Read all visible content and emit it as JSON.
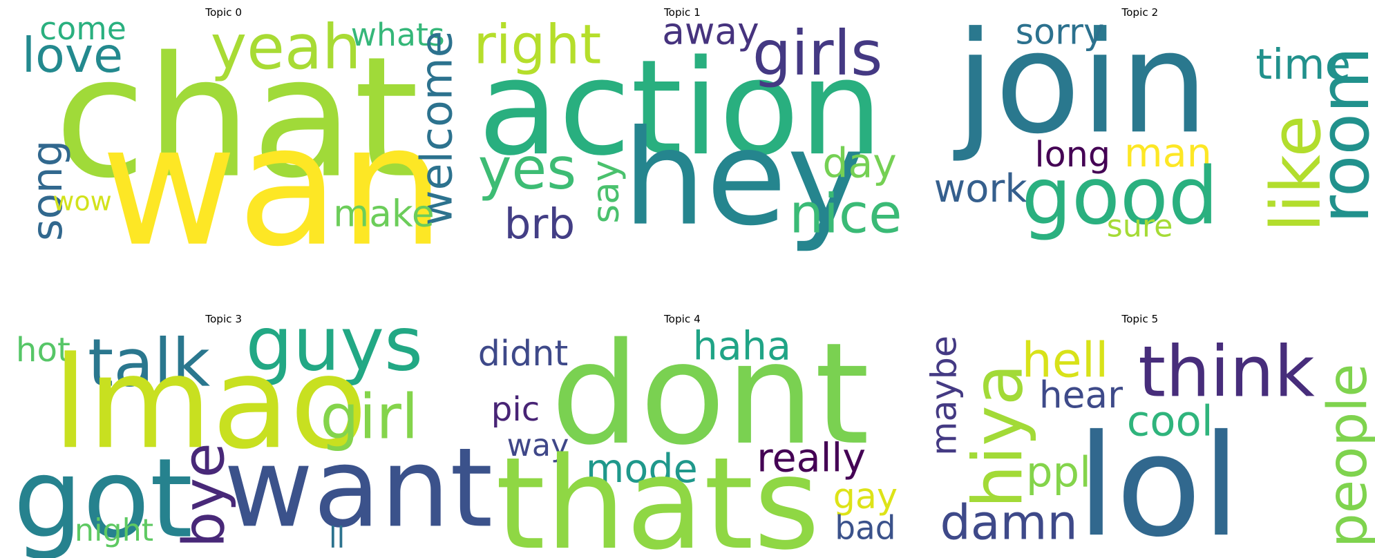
{
  "chart_data": [
    {
      "type": "wordcloud",
      "title": "Topic 0",
      "words": [
        {
          "text": "chat",
          "color": "#a0da39"
        },
        {
          "text": "wan",
          "color": "#fde725"
        },
        {
          "text": "yeah",
          "color": "#a8db34"
        },
        {
          "text": "love",
          "color": "#23898e"
        },
        {
          "text": "come",
          "color": "#2ab07f"
        },
        {
          "text": "whats",
          "color": "#35b779"
        },
        {
          "text": "welcome",
          "color": "#2c728e"
        },
        {
          "text": "song",
          "color": "#31688e"
        },
        {
          "text": "wow",
          "color": "#d2e21b"
        },
        {
          "text": "make",
          "color": "#6ccd5a"
        }
      ]
    },
    {
      "type": "wordcloud",
      "title": "Topic 1",
      "words": [
        {
          "text": "action",
          "color": "#29af7f"
        },
        {
          "text": "hey",
          "color": "#25858e"
        },
        {
          "text": "right",
          "color": "#b5de2b"
        },
        {
          "text": "away",
          "color": "#46337e"
        },
        {
          "text": "girls",
          "color": "#443983"
        },
        {
          "text": "yes",
          "color": "#3dbc74"
        },
        {
          "text": "say",
          "color": "#4ac16d"
        },
        {
          "text": "day",
          "color": "#75d054"
        },
        {
          "text": "nice",
          "color": "#3aba76"
        },
        {
          "text": "brb",
          "color": "#433e85"
        }
      ]
    },
    {
      "type": "wordcloud",
      "title": "Topic 2",
      "words": [
        {
          "text": "join",
          "color": "#2a788e"
        },
        {
          "text": "sorry",
          "color": "#2c718e"
        },
        {
          "text": "time",
          "color": "#21918c"
        },
        {
          "text": "like",
          "color": "#b2dd2d"
        },
        {
          "text": "room",
          "color": "#21918c"
        },
        {
          "text": "long",
          "color": "#440154"
        },
        {
          "text": "man",
          "color": "#fde725"
        },
        {
          "text": "work",
          "color": "#355f8d"
        },
        {
          "text": "good",
          "color": "#2ab07f"
        },
        {
          "text": "sure",
          "color": "#a5db36"
        }
      ]
    },
    {
      "type": "wordcloud",
      "title": "Topic 3",
      "words": [
        {
          "text": "hot",
          "color": "#56c667"
        },
        {
          "text": "talk",
          "color": "#2a778e"
        },
        {
          "text": "guys",
          "color": "#22a884"
        },
        {
          "text": "lmao",
          "color": "#c8e020"
        },
        {
          "text": "girl",
          "color": "#84d44b"
        },
        {
          "text": "got",
          "color": "#26828e"
        },
        {
          "text": "want",
          "color": "#3b528b"
        },
        {
          "text": "bye",
          "color": "#482878"
        },
        {
          "text": "night",
          "color": "#5ec962"
        },
        {
          "text": "ll",
          "color": "#2c728e"
        }
      ]
    },
    {
      "type": "wordcloud",
      "title": "Topic 4",
      "words": [
        {
          "text": "didnt",
          "color": "#3e4989"
        },
        {
          "text": "haha",
          "color": "#20a486"
        },
        {
          "text": "dont",
          "color": "#7ad151"
        },
        {
          "text": "pic",
          "color": "#482475"
        },
        {
          "text": "way",
          "color": "#3f4788"
        },
        {
          "text": "mode",
          "color": "#1f988b"
        },
        {
          "text": "really",
          "color": "#440154"
        },
        {
          "text": "thats",
          "color": "#8fd744"
        },
        {
          "text": "gay",
          "color": "#dde318"
        },
        {
          "text": "bad",
          "color": "#3b528b"
        }
      ]
    },
    {
      "type": "wordcloud",
      "title": "Topic 5",
      "words": [
        {
          "text": "maybe",
          "color": "#443a83"
        },
        {
          "text": "hiya",
          "color": "#a2da37"
        },
        {
          "text": "hell",
          "color": "#d8e219"
        },
        {
          "text": "think",
          "color": "#472d7b"
        },
        {
          "text": "people",
          "color": "#7fd34e"
        },
        {
          "text": "hear",
          "color": "#3e4a89"
        },
        {
          "text": "cool",
          "color": "#2fb47c"
        },
        {
          "text": "ppl",
          "color": "#84d44b"
        },
        {
          "text": "damn",
          "color": "#3e4989"
        },
        {
          "text": "lol",
          "color": "#31688e"
        }
      ]
    }
  ]
}
